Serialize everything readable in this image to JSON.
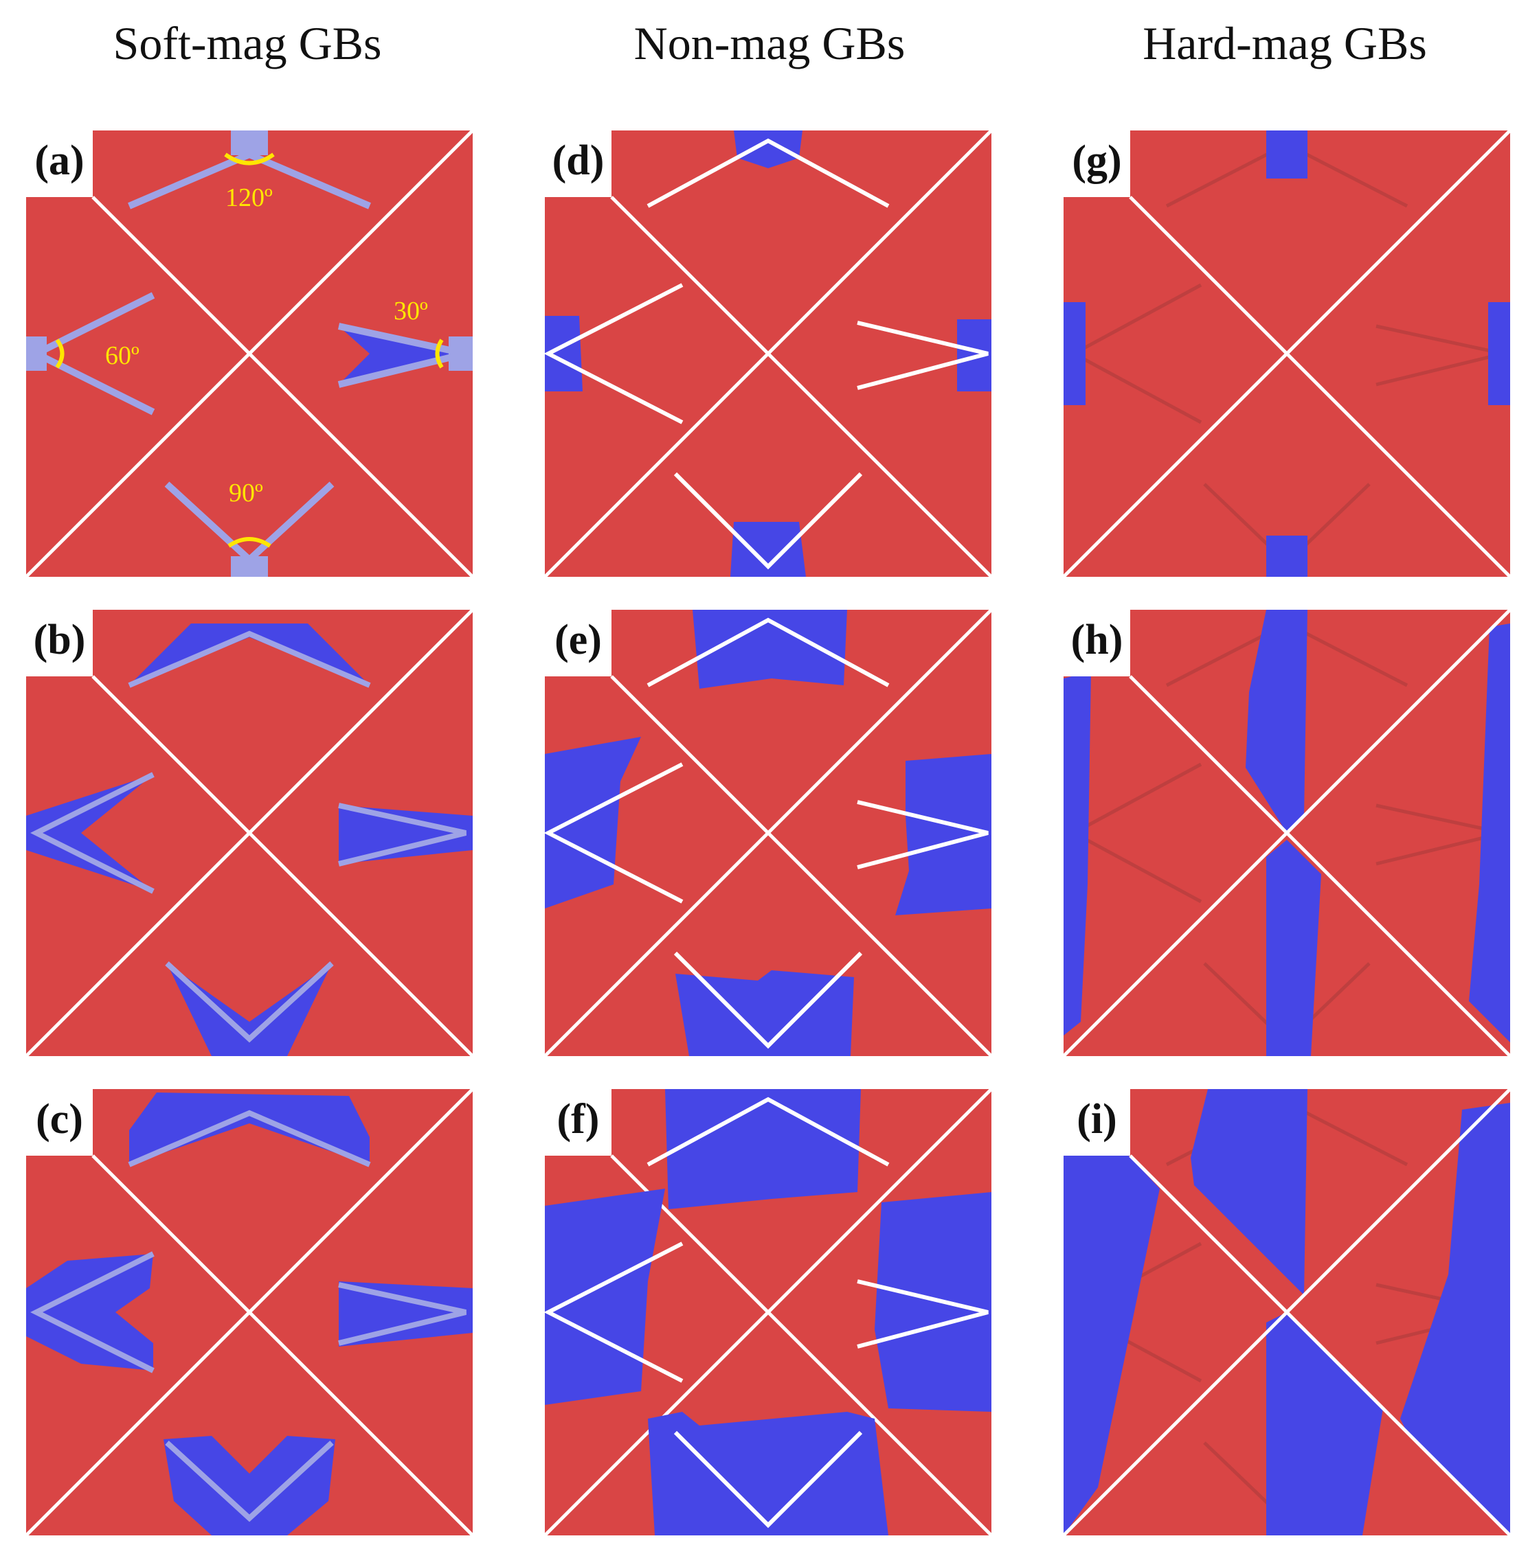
{
  "columns": [
    "Soft-mag GBs",
    "Non-mag GBs",
    "Hard-mag GBs"
  ],
  "panels": [
    {
      "label": "(a)",
      "grain_boundary": "soft",
      "angles": [
        "120º",
        "60º",
        "30º",
        "90º"
      ]
    },
    {
      "label": "(b)",
      "grain_boundary": "soft"
    },
    {
      "label": "(c)",
      "grain_boundary": "soft"
    },
    {
      "label": "(d)",
      "grain_boundary": "non"
    },
    {
      "label": "(e)",
      "grain_boundary": "non"
    },
    {
      "label": "(f)",
      "grain_boundary": "non"
    },
    {
      "label": "(g)",
      "grain_boundary": "hard"
    },
    {
      "label": "(h)",
      "grain_boundary": "hard"
    },
    {
      "label": "(i)",
      "grain_boundary": "hard"
    }
  ],
  "colors": {
    "matrix_red": "#d94545",
    "reversed_blue": "#4646e6",
    "grain_boundary_white": "#ffffff",
    "angle_marker_yellow": "#ffe600",
    "soft_gb_fill": "#9ea3e6"
  }
}
